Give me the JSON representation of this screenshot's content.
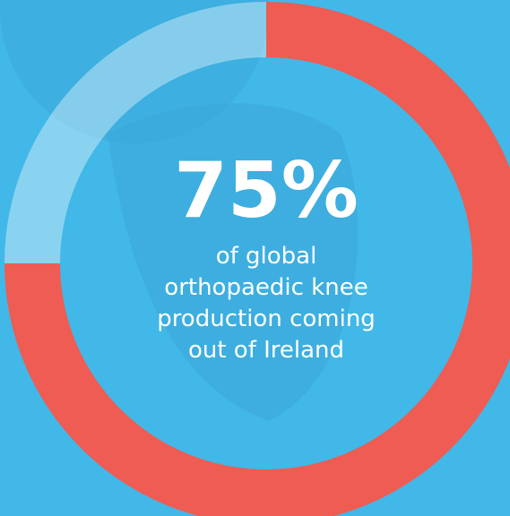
{
  "chart_data": {
    "type": "donut",
    "values": [
      75,
      25
    ],
    "value_labels": [
      "75%",
      null
    ],
    "colors": [
      "#ee5c53",
      "rgba(255,255,255,0.38)"
    ],
    "caption": [
      "of global",
      "orthopaedic knee",
      "production coming",
      "out of Ireland"
    ]
  }
}
